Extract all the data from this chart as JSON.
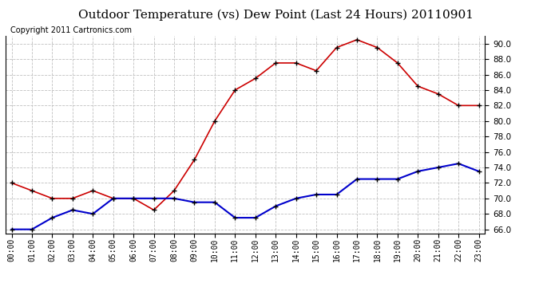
{
  "title": "Outdoor Temperature (vs) Dew Point (Last 24 Hours) 20110901",
  "copyright_text": "Copyright 2011 Cartronics.com",
  "hours": [
    "00:00",
    "01:00",
    "02:00",
    "03:00",
    "04:00",
    "05:00",
    "06:00",
    "07:00",
    "08:00",
    "09:00",
    "10:00",
    "11:00",
    "12:00",
    "13:00",
    "14:00",
    "15:00",
    "16:00",
    "17:00",
    "18:00",
    "19:00",
    "20:00",
    "21:00",
    "22:00",
    "23:00"
  ],
  "temp_red": [
    72.0,
    71.0,
    70.0,
    70.0,
    71.0,
    70.0,
    70.0,
    68.5,
    71.0,
    75.0,
    80.0,
    84.0,
    85.5,
    87.5,
    87.5,
    86.5,
    89.5,
    90.5,
    89.5,
    87.5,
    84.5,
    83.5,
    82.0,
    82.0
  ],
  "dew_blue": [
    66.0,
    66.0,
    67.5,
    68.5,
    68.0,
    70.0,
    70.0,
    70.0,
    70.0,
    69.5,
    69.5,
    67.5,
    67.5,
    69.0,
    70.0,
    70.5,
    70.5,
    72.5,
    72.5,
    72.5,
    73.5,
    74.0,
    74.5,
    73.5
  ],
  "ylim": [
    65.5,
    91.0
  ],
  "yticks": [
    66.0,
    68.0,
    70.0,
    72.0,
    74.0,
    76.0,
    78.0,
    80.0,
    82.0,
    84.0,
    86.0,
    88.0,
    90.0
  ],
  "red_color": "#cc0000",
  "blue_color": "#0000cc",
  "grid_color": "#c0c0c0",
  "background_color": "#ffffff",
  "title_fontsize": 11,
  "copyright_fontsize": 7,
  "tick_fontsize": 7,
  "ytick_fontsize": 7.5
}
